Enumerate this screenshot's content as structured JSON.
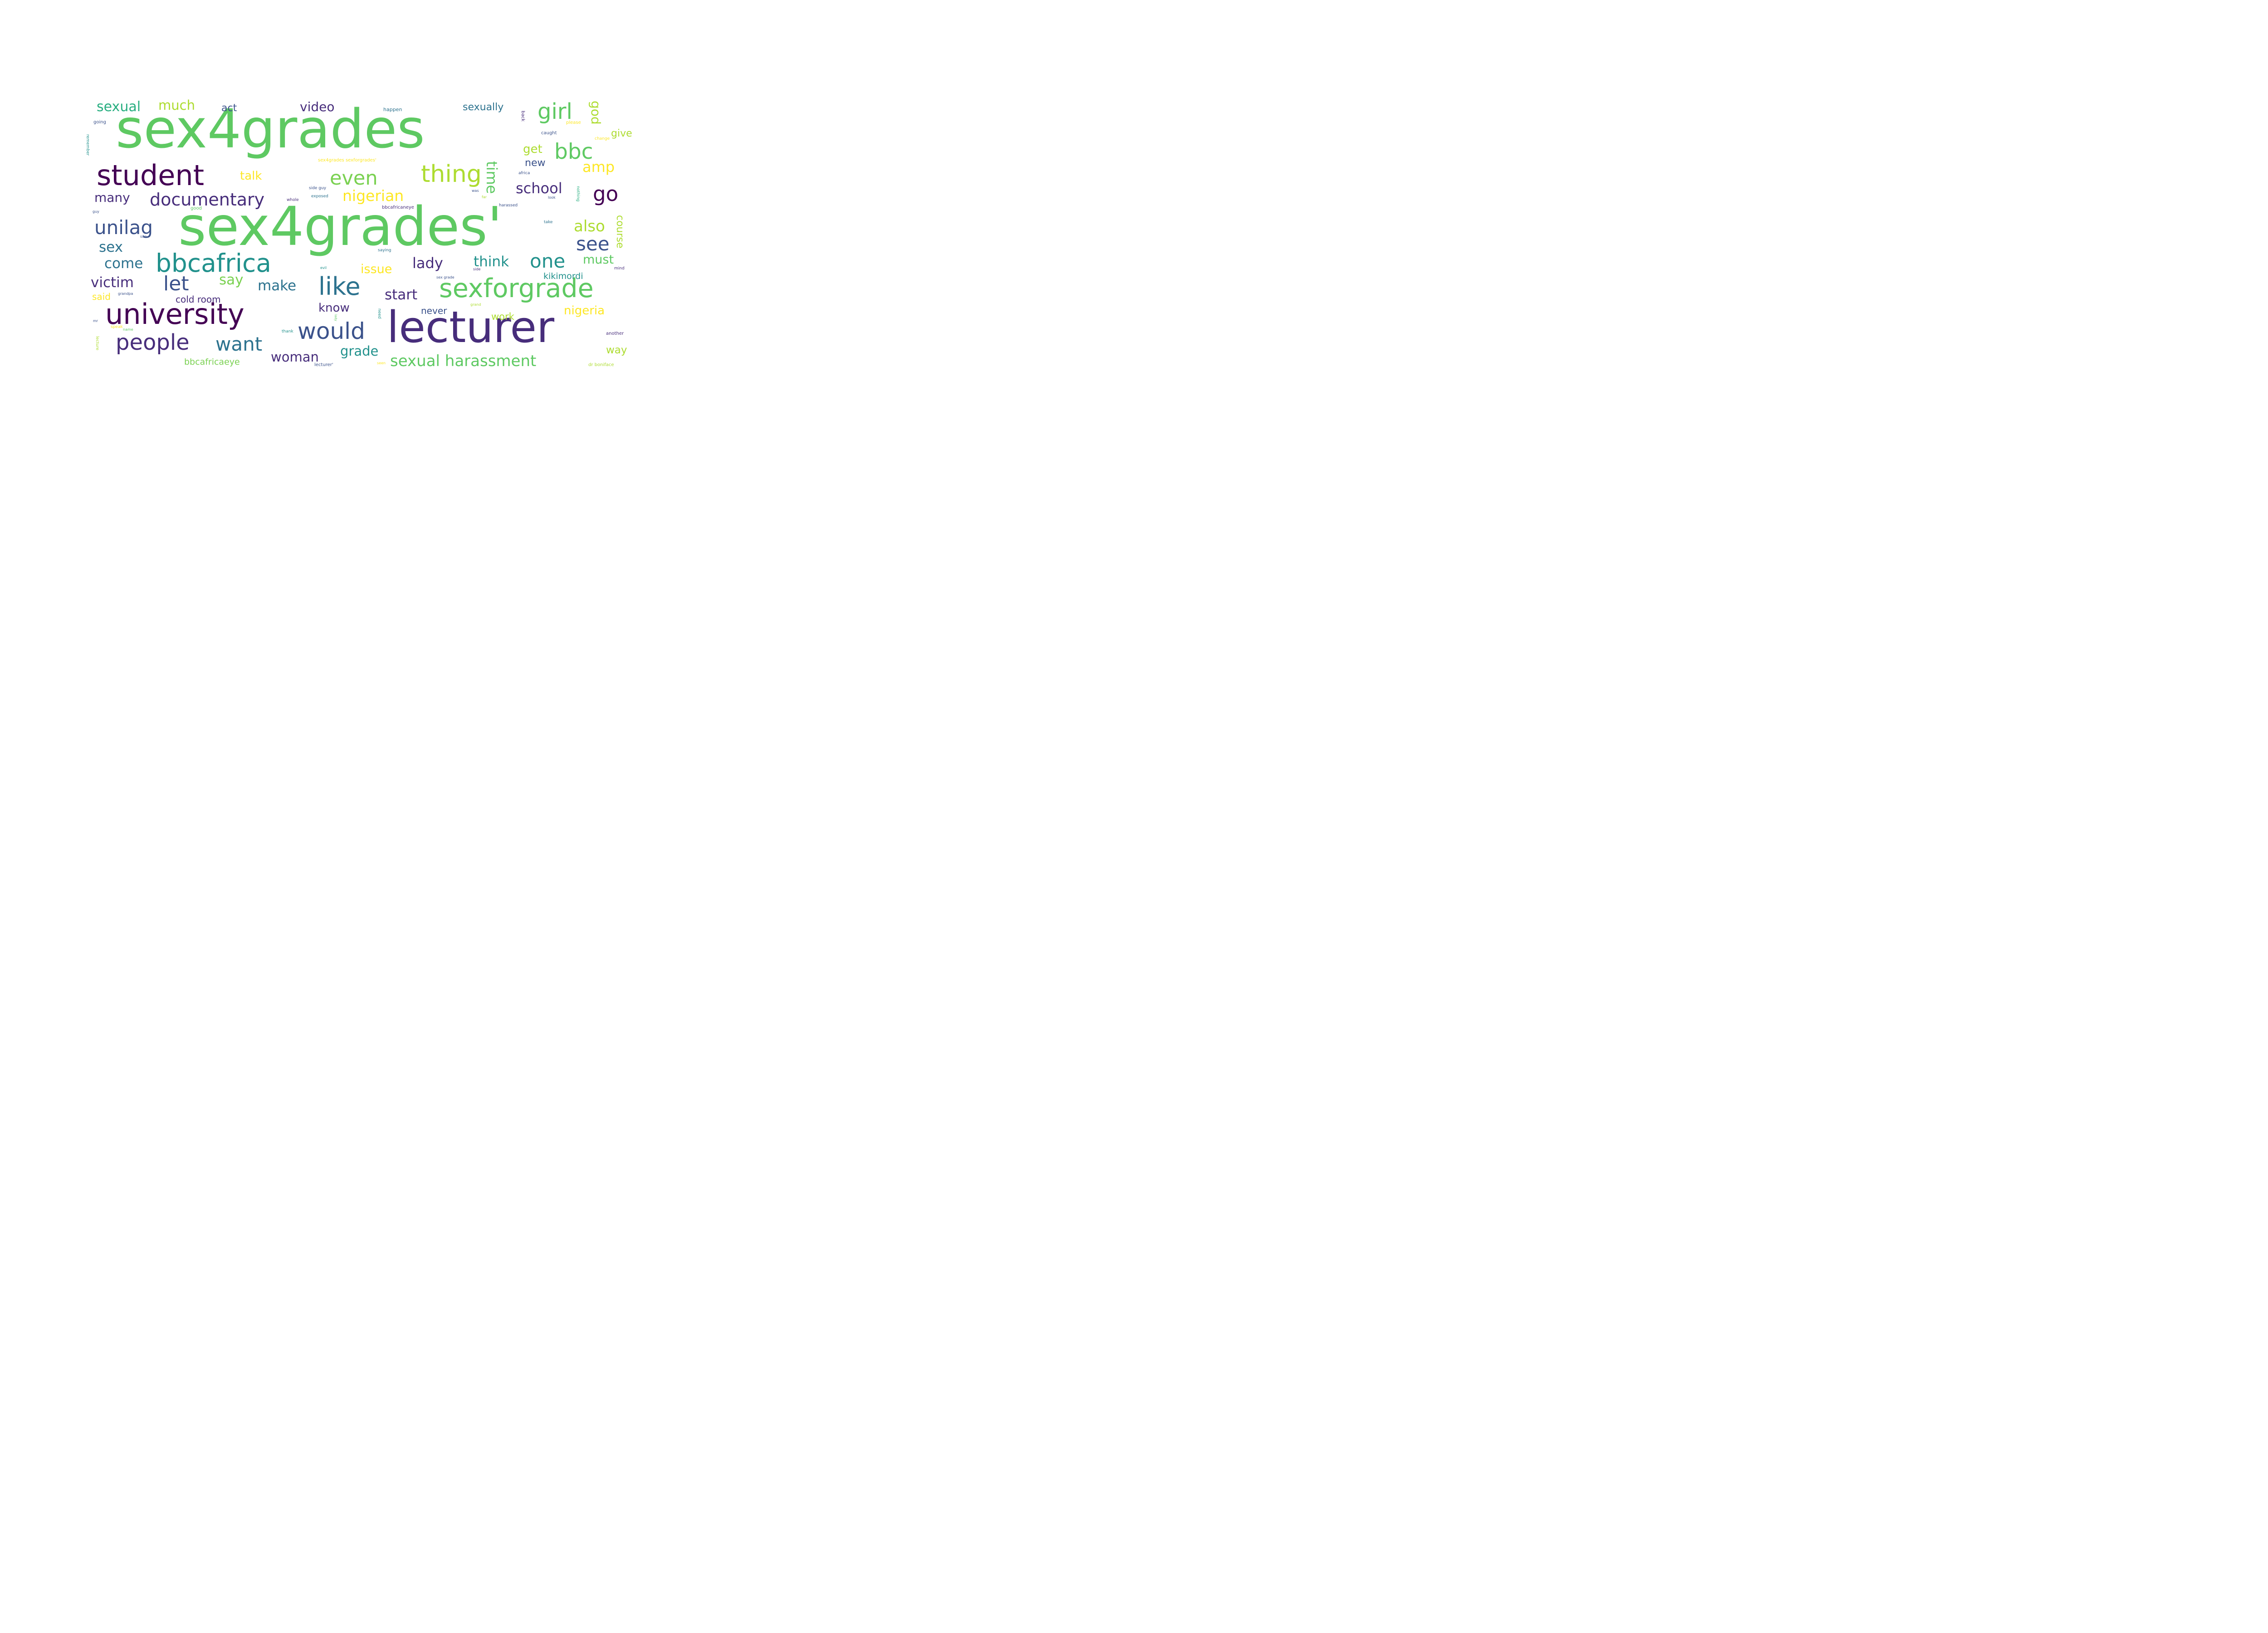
{
  "palette": {
    "dark_purple": "#440154",
    "purple": "#472d7b",
    "indigo": "#3b528b",
    "blue": "#2c728e",
    "teal": "#21918c",
    "green_teal": "#28ae80",
    "green": "#5ec962",
    "lime": "#addc30",
    "yellow": "#fde725"
  },
  "words": [
    {
      "text": "sex4grades",
      "color": "#5ec962"
    },
    {
      "text": "sex4grades'",
      "color": "#5ec962"
    },
    {
      "text": "lecturer",
      "color": "#472d7b"
    },
    {
      "text": "university",
      "color": "#440154"
    },
    {
      "text": "student",
      "color": "#440154"
    },
    {
      "text": "sexforgrade",
      "color": "#5ec962"
    },
    {
      "text": "bbcafrica",
      "color": "#21918c"
    },
    {
      "text": "thing",
      "color": "#addc30"
    },
    {
      "text": "like",
      "color": "#2c728e"
    },
    {
      "text": "would",
      "color": "#3b528b"
    },
    {
      "text": "people",
      "color": "#472d7b"
    },
    {
      "text": "girl",
      "color": "#5ec962"
    },
    {
      "text": "bbc",
      "color": "#5ec962"
    },
    {
      "text": "even",
      "color": "#7ad151"
    },
    {
      "text": "go",
      "color": "#440154"
    },
    {
      "text": "documentary",
      "color": "#472d7b"
    },
    {
      "text": "unilag",
      "color": "#3b528b"
    },
    {
      "text": "see",
      "color": "#3b528b"
    },
    {
      "text": "one",
      "color": "#21918c"
    },
    {
      "text": "let",
      "color": "#3b528b"
    },
    {
      "text": "want",
      "color": "#2c728e"
    },
    {
      "text": "sexual harassment",
      "color": "#5ec962"
    },
    {
      "text": "nigerian",
      "color": "#fde725"
    },
    {
      "text": "school",
      "color": "#472d7b"
    },
    {
      "text": "time",
      "color": "#5ec962"
    },
    {
      "text": "sexual",
      "color": "#28ae80"
    },
    {
      "text": "much",
      "color": "#addc30"
    },
    {
      "text": "video",
      "color": "#472d7b"
    },
    {
      "text": "act",
      "color": "#3b528b"
    },
    {
      "text": "sexually",
      "color": "#2c728e"
    },
    {
      "text": "god",
      "color": "#addc30"
    },
    {
      "text": "give",
      "color": "#addc30"
    },
    {
      "text": "get",
      "color": "#addc30"
    },
    {
      "text": "new",
      "color": "#3b528b"
    },
    {
      "text": "amp",
      "color": "#fde725"
    },
    {
      "text": "talk",
      "color": "#fde725"
    },
    {
      "text": "many",
      "color": "#472d7b"
    },
    {
      "text": "also",
      "color": "#addc30"
    },
    {
      "text": "course",
      "color": "#addc30"
    },
    {
      "text": "sex",
      "color": "#2c728e"
    },
    {
      "text": "come",
      "color": "#2c728e"
    },
    {
      "text": "lady",
      "color": "#472d7b"
    },
    {
      "text": "think",
      "color": "#21918c"
    },
    {
      "text": "issue",
      "color": "#fde725"
    },
    {
      "text": "must",
      "color": "#5ec962"
    },
    {
      "text": "victim",
      "color": "#472d7b"
    },
    {
      "text": "say",
      "color": "#7ad151"
    },
    {
      "text": "make",
      "color": "#2c728e"
    },
    {
      "text": "start",
      "color": "#472d7b"
    },
    {
      "text": "kikimordi",
      "color": "#21918c"
    },
    {
      "text": "said",
      "color": "#fde725"
    },
    {
      "text": "cold room",
      "color": "#472d7b"
    },
    {
      "text": "know",
      "color": "#472d7b"
    },
    {
      "text": "never",
      "color": "#3b528b"
    },
    {
      "text": "nigeria",
      "color": "#fde725"
    },
    {
      "text": "work",
      "color": "#addc30"
    },
    {
      "text": "grade",
      "color": "#21918c"
    },
    {
      "text": "woman",
      "color": "#472d7b"
    },
    {
      "text": "way",
      "color": "#addc30"
    },
    {
      "text": "bbcafricaeye",
      "color": "#7ad151"
    },
    {
      "text": "happen",
      "color": "#2c728e"
    },
    {
      "text": "back",
      "color": "#472d7b"
    },
    {
      "text": "going",
      "color": "#3b528b"
    },
    {
      "text": "please",
      "color": "#fde725"
    },
    {
      "text": "caught",
      "color": "#3b528b"
    },
    {
      "text": "change",
      "color": "#fde725"
    },
    {
      "text": "remember",
      "color": "#21918c"
    },
    {
      "text": "sex4grades sexforgrades'",
      "color": "#fde725"
    },
    {
      "text": "africa",
      "color": "#3b528b"
    },
    {
      "text": "side guy",
      "color": "#3b528b"
    },
    {
      "text": "whole",
      "color": "#472d7b"
    },
    {
      "text": "exposed",
      "color": "#2c728e"
    },
    {
      "text": "was",
      "color": "#3b528b"
    },
    {
      "text": "far",
      "color": "#addc30"
    },
    {
      "text": "look",
      "color": "#3b528b"
    },
    {
      "text": "nothing",
      "color": "#28ae80"
    },
    {
      "text": "good",
      "color": "#5ec962"
    },
    {
      "text": "bbcafricaneye",
      "color": "#472d7b"
    },
    {
      "text": "harassed",
      "color": "#3b528b"
    },
    {
      "text": "guy",
      "color": "#3b528b"
    },
    {
      "text": "take",
      "color": "#2c728e"
    },
    {
      "text": "site",
      "color": "#3b528b"
    },
    {
      "text": "saying",
      "color": "#2c728e"
    },
    {
      "text": "evil",
      "color": "#21918c"
    },
    {
      "text": "side",
      "color": "#472d7b"
    },
    {
      "text": "mind",
      "color": "#472d7b"
    },
    {
      "text": "sex grade",
      "color": "#3b528b"
    },
    {
      "text": "grandpa",
      "color": "#3b528b"
    },
    {
      "text": "grand",
      "color": "#addc30"
    },
    {
      "text": "need",
      "color": "#21918c"
    },
    {
      "text": "lady",
      "color": "#5ec962"
    },
    {
      "text": "mr",
      "color": "#3b528b"
    },
    {
      "text": "speak",
      "color": "#fde725"
    },
    {
      "text": "name",
      "color": "#5ec962"
    },
    {
      "text": "thank",
      "color": "#21918c"
    },
    {
      "text": "another",
      "color": "#472d7b"
    },
    {
      "text": "lecture",
      "color": "#addc30"
    },
    {
      "text": "lecturer'",
      "color": "#3b528b"
    },
    {
      "text": "seen",
      "color": "#fde725"
    },
    {
      "text": "dr boniface",
      "color": "#addc30"
    }
  ]
}
